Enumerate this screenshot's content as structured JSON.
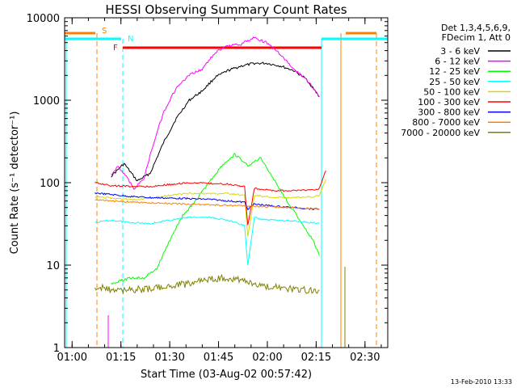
{
  "chart_data": {
    "type": "line",
    "title": "HESSI Observing Summary Count Rates",
    "xlabel": "Start Time (03-Aug-02 00:57:42)",
    "ylabel": "Count Rate (s⁻¹ detector⁻¹)",
    "y_scale": "log",
    "ylim": [
      1,
      10000
    ],
    "xlim": [
      "00:57:42",
      "02:37:00"
    ],
    "x_ticks": [
      "01:00",
      "01:15",
      "01:30",
      "01:45",
      "02:00",
      "02:15",
      "02:30"
    ],
    "y_ticks": [
      "1",
      "10",
      "100",
      "1000",
      "10000"
    ],
    "legend_header": [
      "Det 1,3,4,5,6,9,",
      "FDecim 1, Att 0"
    ],
    "legend_position": "right",
    "footer": "13-Feb-2010 13:33",
    "series": [
      {
        "name": "3 - 6 keV",
        "color": "#000000",
        "x": [
          "01:12",
          "01:16",
          "01:20",
          "01:24",
          "01:28",
          "01:32",
          "01:36",
          "01:40",
          "01:44",
          "01:48",
          "01:52",
          "01:56",
          "02:00",
          "02:04",
          "02:08",
          "02:12",
          "02:16"
        ],
        "y": [
          120,
          170,
          105,
          130,
          300,
          600,
          1000,
          1300,
          1900,
          2300,
          2600,
          2800,
          2800,
          2600,
          2300,
          1800,
          1100
        ]
      },
      {
        "name": "6 - 12 keV",
        "color": "#ff00ff",
        "x": [
          "01:12",
          "01:14",
          "01:16",
          "01:19",
          "01:22",
          "01:25",
          "01:28",
          "01:32",
          "01:36",
          "01:40",
          "01:44",
          "01:48",
          "01:52",
          "01:56",
          "02:00",
          "02:04",
          "02:08",
          "02:12",
          "02:16"
        ],
        "y": [
          120,
          160,
          130,
          85,
          110,
          300,
          700,
          1400,
          2000,
          2400,
          3800,
          4600,
          4800,
          5800,
          4900,
          3600,
          2400,
          1800,
          1100
        ]
      },
      {
        "name": "12 - 25 keV",
        "color": "#00ff00",
        "x": [
          "01:12",
          "01:18",
          "01:22",
          "01:26",
          "01:30",
          "01:34",
          "01:38",
          "01:42",
          "01:46",
          "01:50",
          "01:54",
          "01:58",
          "02:02",
          "02:06",
          "02:10",
          "02:14",
          "02:16"
        ],
        "y": [
          6,
          7,
          7,
          9,
          20,
          40,
          60,
          100,
          160,
          220,
          160,
          200,
          110,
          60,
          35,
          20,
          13
        ]
      },
      {
        "name": "25 - 50 keV",
        "color": "#00ffff",
        "x": [
          "01:07",
          "01:12",
          "01:18",
          "01:24",
          "01:30",
          "01:36",
          "01:42",
          "01:48",
          "01:53",
          "01:54",
          "01:56",
          "01:58",
          "02:04",
          "02:10",
          "02:16"
        ],
        "y": [
          33,
          35,
          33,
          32,
          35,
          38,
          38,
          35,
          30,
          10,
          38,
          36,
          35,
          34,
          32
        ]
      },
      {
        "name": "50 - 100 keV",
        "color": "#d8d800",
        "x": [
          "01:07",
          "01:12",
          "01:18",
          "01:24",
          "01:30",
          "01:36",
          "01:42",
          "01:48",
          "01:53",
          "01:54",
          "01:56",
          "02:02",
          "02:08",
          "02:14",
          "02:16",
          "02:18"
        ],
        "y": [
          68,
          65,
          62,
          65,
          70,
          74,
          74,
          74,
          70,
          22,
          70,
          66,
          66,
          68,
          70,
          110
        ]
      },
      {
        "name": "100 - 300 keV",
        "color": "#ff0000",
        "x": [
          "01:07",
          "01:12",
          "01:18",
          "01:24",
          "01:30",
          "01:36",
          "01:42",
          "01:48",
          "01:53",
          "01:54",
          "01:56",
          "02:02",
          "02:08",
          "02:14",
          "02:16",
          "02:18"
        ],
        "y": [
          100,
          92,
          90,
          90,
          95,
          100,
          98,
          96,
          90,
          30,
          85,
          80,
          80,
          82,
          85,
          140
        ]
      },
      {
        "name": "300 - 800 keV",
        "color": "#0000ff",
        "x": [
          "01:07",
          "01:12",
          "01:18",
          "01:24",
          "01:30",
          "01:36",
          "01:42",
          "01:48",
          "01:53",
          "01:54",
          "01:56",
          "02:02",
          "02:08",
          "02:14",
          "02:16"
        ],
        "y": [
          75,
          72,
          68,
          66,
          65,
          64,
          63,
          60,
          58,
          48,
          55,
          52,
          50,
          48,
          48
        ]
      },
      {
        "name": "800 - 7000 keV",
        "color": "#ff8000",
        "x": [
          "01:07",
          "01:12",
          "01:18",
          "01:24",
          "01:30",
          "01:36",
          "01:42",
          "01:48",
          "01:54",
          "02:00",
          "02:06",
          "02:12",
          "02:16"
        ],
        "y": [
          62,
          60,
          58,
          57,
          56,
          55,
          54,
          53,
          52,
          51,
          50,
          49,
          48
        ]
      },
      {
        "name": "7000 - 20000 keV",
        "color": "#808000",
        "x": [
          "01:07",
          "01:12",
          "01:18",
          "01:24",
          "01:30",
          "01:36",
          "01:42",
          "01:48",
          "01:54",
          "02:00",
          "02:06",
          "02:12",
          "02:16"
        ],
        "y": [
          5.5,
          5,
          5,
          5.2,
          5.5,
          6,
          6.8,
          7,
          6.2,
          5.5,
          5.2,
          5,
          5
        ]
      }
    ],
    "flags": [
      {
        "label": "S",
        "color": "#ff8000"
      },
      {
        "label": "N",
        "color": "#00ffff"
      },
      {
        "label": "F",
        "color": "#ff0000"
      }
    ]
  }
}
